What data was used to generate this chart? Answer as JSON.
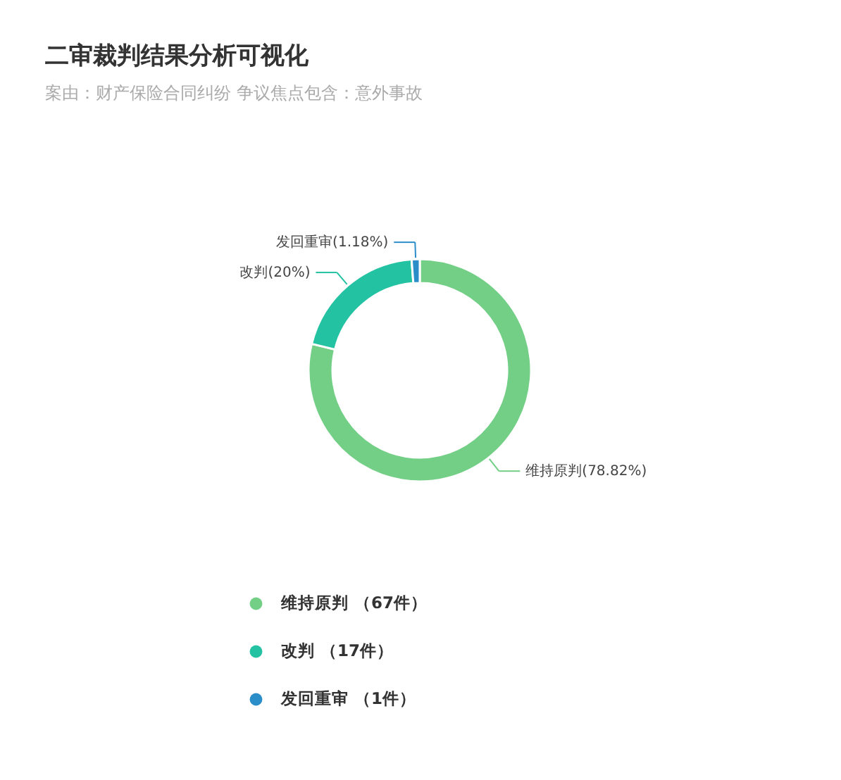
{
  "chart_data": {
    "type": "donut",
    "title": "二审裁判结果分析可视化",
    "subtitle": "案由：财产保险合同纠纷  争议焦点包含：意外事故",
    "categories": [
      "维持原判 （67件）",
      "改判 （17件）",
      "发回重审 （1件）"
    ],
    "values": [
      67,
      17,
      1
    ],
    "colors": [
      "#72cf85",
      "#22c2a2",
      "#2b8ec9"
    ],
    "value_labels": [
      "维持原判(78.82%)",
      "改判(20%)",
      "发回重审(1.18%)"
    ],
    "legend": "bottom"
  }
}
